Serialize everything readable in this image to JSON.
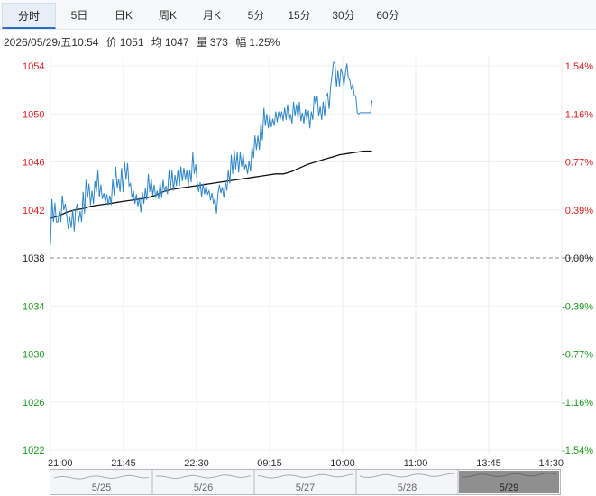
{
  "tabs": [
    {
      "label": "分时",
      "active": true
    },
    {
      "label": "5日",
      "active": false
    },
    {
      "label": "日K",
      "active": false
    },
    {
      "label": "周K",
      "active": false
    },
    {
      "label": "月K",
      "active": false
    },
    {
      "label": "5分",
      "active": false
    },
    {
      "label": "15分",
      "active": false
    },
    {
      "label": "30分",
      "active": false
    },
    {
      "label": "60分",
      "active": false
    }
  ],
  "info": {
    "datetime": "2026/05/29/五10:54",
    "price_label": "价",
    "price": "1051",
    "avg_label": "均",
    "avg": "1047",
    "volume_label": "量",
    "volume": "373",
    "change_label": "幅",
    "change": "1.25%"
  },
  "colors": {
    "up": "#e02020",
    "down": "#1a9a1a",
    "base": "#222222",
    "price_line": "#2f86c8",
    "avg_line": "#111111",
    "nav_selected": "#8f8f8f"
  },
  "chart_data": {
    "type": "line",
    "base_price": 1038,
    "ylim": [
      1022,
      1054
    ],
    "price_ticks": [
      {
        "value": 1054,
        "label": "1054",
        "pct": "1.54%"
      },
      {
        "value": 1050,
        "label": "1050",
        "pct": "1.16%"
      },
      {
        "value": 1046,
        "label": "1046",
        "pct": "0.77%"
      },
      {
        "value": 1042,
        "label": "1042",
        "pct": "0.39%"
      },
      {
        "value": 1038,
        "label": "1038",
        "pct": "0.00%"
      },
      {
        "value": 1034,
        "label": "1034",
        "pct": "-0.39%"
      },
      {
        "value": 1030,
        "label": "1030",
        "pct": "-0.77%"
      },
      {
        "value": 1026,
        "label": "1026",
        "pct": "-1.16%"
      },
      {
        "value": 1022,
        "label": "1022",
        "pct": "-1.54%"
      }
    ],
    "time_ticks": [
      "21:00",
      "21:45",
      "22:30",
      "09:15",
      "10:00",
      "11:00",
      "13:45",
      "14:30"
    ],
    "session_minutes": 345,
    "series": [
      {
        "name": "价",
        "values": [
          1039.1,
          1042.9,
          1041.0,
          1042.6,
          1041.0,
          1041.0,
          1041.9,
          1041.0,
          1043.2,
          1042.0,
          1042.5,
          1041.5,
          1040.4,
          1041.4,
          1040.5,
          1042.0,
          1040.2,
          1042.0,
          1042.5,
          1041.0,
          1041.9,
          1041.0,
          1043.5,
          1041.7,
          1044.5,
          1043.0,
          1044.2,
          1042.4,
          1043.6,
          1042.5,
          1044.4,
          1043.5,
          1045.3,
          1043.1,
          1044.1,
          1042.9,
          1043.4,
          1042.6,
          1043.3,
          1042.4,
          1043.2,
          1042.4,
          1044.6,
          1043.2,
          1045.6,
          1043.8,
          1044.6,
          1043.5,
          1045.5,
          1043.5,
          1046.0,
          1044.5,
          1045.9,
          1044.0,
          1044.2,
          1043.0,
          1043.6,
          1042.5,
          1043.3,
          1042.3,
          1043.0,
          1041.8,
          1043.5,
          1042.5,
          1043.8,
          1042.8,
          1045.0,
          1043.5,
          1044.6,
          1043.2,
          1044.1,
          1043.0,
          1043.6,
          1042.9,
          1044.3,
          1043.0,
          1044.5,
          1043.5,
          1044.0,
          1043.3,
          1045.3,
          1043.8,
          1045.3,
          1043.6,
          1044.9,
          1044.0,
          1045.3,
          1044.0,
          1045.6,
          1044.4,
          1045.5,
          1044.5,
          1045.3,
          1044.0,
          1045.3,
          1044.3,
          1046.8,
          1045.0,
          1045.8,
          1044.3,
          1043.5,
          1044.3,
          1043.1,
          1044.2,
          1043.3,
          1044.0,
          1043.3,
          1043.6,
          1042.8,
          1043.4,
          1042.5,
          1043.0,
          1041.7,
          1043.3,
          1044.1,
          1043.4,
          1043.9,
          1043.0,
          1044.4,
          1043.6,
          1045.3,
          1044.2,
          1046.6,
          1045.0,
          1047.0,
          1045.4,
          1046.8,
          1045.1,
          1046.8,
          1045.6,
          1046.7,
          1045.4,
          1045.8,
          1045.0,
          1046.1,
          1045.2,
          1047.3,
          1046.3,
          1048.2,
          1047.0,
          1048.2,
          1047.0,
          1049.3,
          1047.8,
          1050.5,
          1049.0,
          1050.0,
          1048.8,
          1049.9,
          1048.9,
          1049.6,
          1049.0,
          1050.2,
          1049.3,
          1050.2,
          1049.5,
          1050.2,
          1049.4,
          1050.5,
          1049.5,
          1050.8,
          1049.4,
          1050.0,
          1049.2,
          1051.0,
          1049.8,
          1050.8,
          1049.6,
          1051.0,
          1049.4,
          1050.1,
          1049.2,
          1050.4,
          1049.5,
          1050.3,
          1048.8,
          1050.2,
          1049.5,
          1051.5,
          1050.8,
          1051.5,
          1049.8,
          1050.6,
          1049.5,
          1051.0,
          1049.8,
          1051.5,
          1051.7,
          1050.4,
          1052.2,
          1053.3,
          1054.3,
          1054.2,
          1052.2,
          1053.6,
          1052.3,
          1053.8,
          1053.3,
          1052.3,
          1053.4,
          1054.2,
          1053.0,
          1052.8,
          1052.0,
          1052.5,
          1051.5,
          1051.5,
          1050.1,
          1050.0,
          1050.1,
          1050.1,
          1050.1,
          1050.1,
          1050.1,
          1050.1,
          1050.1,
          1050.1,
          1051.1
        ]
      },
      {
        "name": "均",
        "values": [
          1041.3,
          1041.5,
          1041.8,
          1042.0,
          1042.1,
          1042.3,
          1042.4,
          1042.5,
          1042.6,
          1042.7,
          1042.8,
          1042.9,
          1043.0,
          1043.2,
          1043.5,
          1043.7,
          1043.8,
          1043.9,
          1044.0,
          1044.1,
          1044.2,
          1044.3,
          1044.4,
          1044.5,
          1044.6,
          1044.7,
          1044.8,
          1044.9,
          1045.0,
          1045.0,
          1045.2,
          1045.5,
          1045.8,
          1046.0,
          1046.2,
          1046.4,
          1046.6,
          1046.7,
          1046.8,
          1046.9,
          1046.9
        ]
      }
    ]
  },
  "navigator": {
    "days": [
      "5/25",
      "5/26",
      "5/27",
      "5/28",
      "5/29"
    ]
  }
}
